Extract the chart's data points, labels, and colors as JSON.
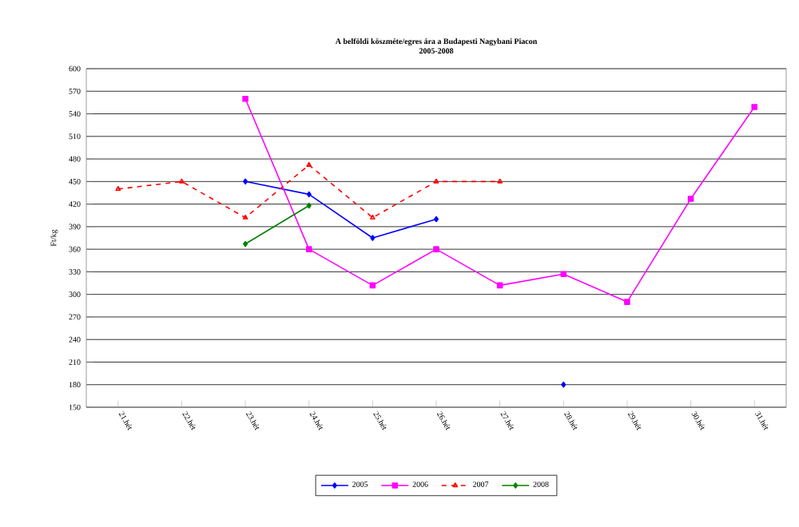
{
  "chart_data": {
    "type": "line",
    "title": "A belföldi köszméte/egres ára a Budapesti Nagybani Piacon",
    "subtitle": "2005-2008",
    "ylabel": "Ft/kg",
    "categories": [
      "21.hét",
      "22.hét",
      "23.hét",
      "24.hét",
      "25.hét",
      "26.hét",
      "27.hét",
      "28.hét",
      "29.hét",
      "30.hét",
      "31.hét"
    ],
    "series": [
      {
        "name": "2005",
        "color": "#0000ff",
        "marker": "diamond",
        "line_style": "solid",
        "values": [
          null,
          null,
          450,
          433,
          375,
          400,
          null,
          180,
          null,
          null,
          null
        ]
      },
      {
        "name": "2006",
        "color": "#ff00ff",
        "marker": "square",
        "line_style": "solid",
        "values": [
          null,
          null,
          560,
          360,
          312,
          360,
          312,
          327,
          290,
          427,
          549
        ]
      },
      {
        "name": "2007",
        "color": "#ff0000",
        "marker": "triangle",
        "line_style": "dashed",
        "values": [
          440,
          450,
          402,
          472,
          402,
          450,
          450,
          null,
          null,
          null,
          null
        ]
      },
      {
        "name": "2008",
        "color": "#008000",
        "marker": "diamond",
        "line_style": "solid",
        "values": [
          null,
          null,
          367,
          418,
          null,
          null,
          null,
          null,
          null,
          null,
          null
        ]
      }
    ],
    "ylim": [
      150,
      600
    ],
    "yticks": [
      150,
      180,
      210,
      240,
      270,
      300,
      330,
      360,
      390,
      420,
      450,
      480,
      510,
      540,
      570,
      600
    ],
    "grid": "y",
    "legend": "bottom"
  }
}
